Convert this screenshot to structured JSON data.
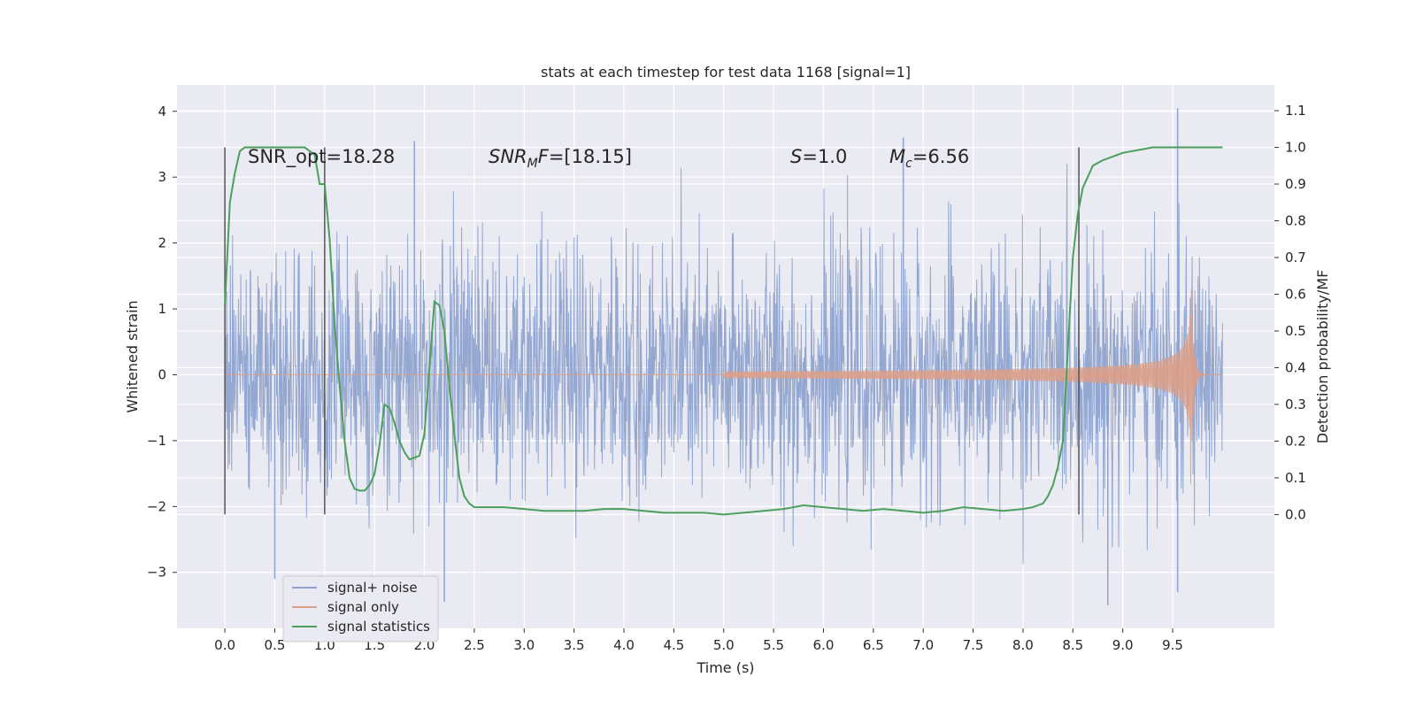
{
  "chart_data": {
    "type": "line",
    "title": "stats at each timestep for test data 1168 [signal=1]",
    "xlabel": "Time (s)",
    "ylabel": "Whitened strain",
    "y2label": "Detection probability/MF",
    "xlim": [
      -0.48,
      10.52
    ],
    "ylim": [
      -3.85,
      4.4
    ],
    "y2lim": [
      -0.31,
      1.17
    ],
    "x_ticks": [
      "0.0",
      "0.5",
      "1.0",
      "1.5",
      "2.0",
      "2.5",
      "3.0",
      "3.5",
      "4.0",
      "4.5",
      "5.0",
      "5.5",
      "6.0",
      "6.5",
      "7.0",
      "7.5",
      "8.0",
      "8.5",
      "9.0",
      "9.5"
    ],
    "y_ticks": [
      "4",
      "3",
      "2",
      "1",
      "0",
      "−1",
      "−2",
      "−3"
    ],
    "y2_ticks": [
      "1.1",
      "1.0",
      "0.9",
      "0.8",
      "0.7",
      "0.6",
      "0.5",
      "0.4",
      "0.3",
      "0.2",
      "0.1",
      "0.0"
    ],
    "grid": true,
    "legend_position": "lower-left",
    "annotations": {
      "snr_opt": "SNR_opt=18.28",
      "snr_mf": "=[18.15]",
      "s": "=1.0",
      "mc": "=6.56"
    },
    "vertical_markers_s": [
      0.0,
      1.0,
      8.56
    ],
    "series": [
      {
        "name": "signal+ noise",
        "color": "#8ea3cf",
        "description": "whitened noise + signal, std ≈ 1, spikes up to ~4.05 near 9.55 s",
        "x_range": [
          0.0,
          10.0
        ],
        "peaks": [
          [
            0.5,
            -3.1
          ],
          [
            1.9,
            3.55
          ],
          [
            2.2,
            -3.45
          ],
          [
            6.8,
            3.6
          ],
          [
            8.85,
            -3.5
          ],
          [
            9.55,
            4.05
          ],
          [
            9.55,
            -3.3
          ]
        ]
      },
      {
        "name": "signal only",
        "color": "#dd9f87",
        "description": "chirp, amplitude rising from 0 at ~5.2 s to ~1.75 at merger ~9.68 s",
        "merger_time": 9.68,
        "peak_amplitude": 1.75
      },
      {
        "name": "signal statistics",
        "color": "#4c9f5c",
        "axis": "right",
        "x": [
          0.0,
          0.05,
          0.1,
          0.15,
          0.2,
          0.3,
          0.4,
          0.5,
          0.6,
          0.7,
          0.8,
          0.85,
          0.9,
          0.95,
          1.0,
          1.05,
          1.1,
          1.15,
          1.2,
          1.25,
          1.3,
          1.35,
          1.4,
          1.45,
          1.5,
          1.55,
          1.6,
          1.65,
          1.7,
          1.75,
          1.8,
          1.85,
          1.9,
          1.95,
          2.0,
          2.05,
          2.1,
          2.15,
          2.2,
          2.25,
          2.3,
          2.35,
          2.4,
          2.45,
          2.5,
          2.6,
          2.7,
          2.8,
          3.0,
          3.2,
          3.4,
          3.6,
          3.8,
          4.0,
          4.2,
          4.4,
          4.6,
          4.8,
          5.0,
          5.2,
          5.4,
          5.6,
          5.8,
          6.0,
          6.2,
          6.4,
          6.6,
          6.8,
          7.0,
          7.2,
          7.4,
          7.6,
          7.8,
          8.0,
          8.1,
          8.2,
          8.25,
          8.3,
          8.35,
          8.4,
          8.45,
          8.5,
          8.55,
          8.6,
          8.65,
          8.7,
          8.8,
          8.9,
          9.0,
          9.1,
          9.2,
          9.3,
          9.4,
          9.5,
          9.6,
          9.7,
          9.8,
          9.9,
          10.0
        ],
        "values": [
          0.57,
          0.85,
          0.93,
          0.99,
          1.0,
          1.0,
          1.0,
          1.0,
          1.0,
          1.0,
          1.0,
          0.99,
          0.98,
          0.9,
          0.9,
          0.75,
          0.52,
          0.35,
          0.2,
          0.1,
          0.07,
          0.065,
          0.065,
          0.08,
          0.11,
          0.19,
          0.3,
          0.29,
          0.25,
          0.2,
          0.17,
          0.15,
          0.155,
          0.16,
          0.22,
          0.4,
          0.58,
          0.57,
          0.5,
          0.35,
          0.22,
          0.1,
          0.05,
          0.03,
          0.02,
          0.02,
          0.02,
          0.02,
          0.015,
          0.01,
          0.01,
          0.01,
          0.015,
          0.015,
          0.01,
          0.005,
          0.005,
          0.005,
          0.0,
          0.005,
          0.01,
          0.015,
          0.025,
          0.02,
          0.015,
          0.01,
          0.015,
          0.01,
          0.005,
          0.01,
          0.02,
          0.015,
          0.01,
          0.015,
          0.02,
          0.03,
          0.05,
          0.08,
          0.13,
          0.2,
          0.45,
          0.7,
          0.82,
          0.89,
          0.92,
          0.95,
          0.965,
          0.975,
          0.985,
          0.99,
          0.995,
          1.0,
          1.0,
          1.0,
          1.0,
          1.0,
          1.0,
          1.0,
          1.0
        ]
      }
    ]
  }
}
